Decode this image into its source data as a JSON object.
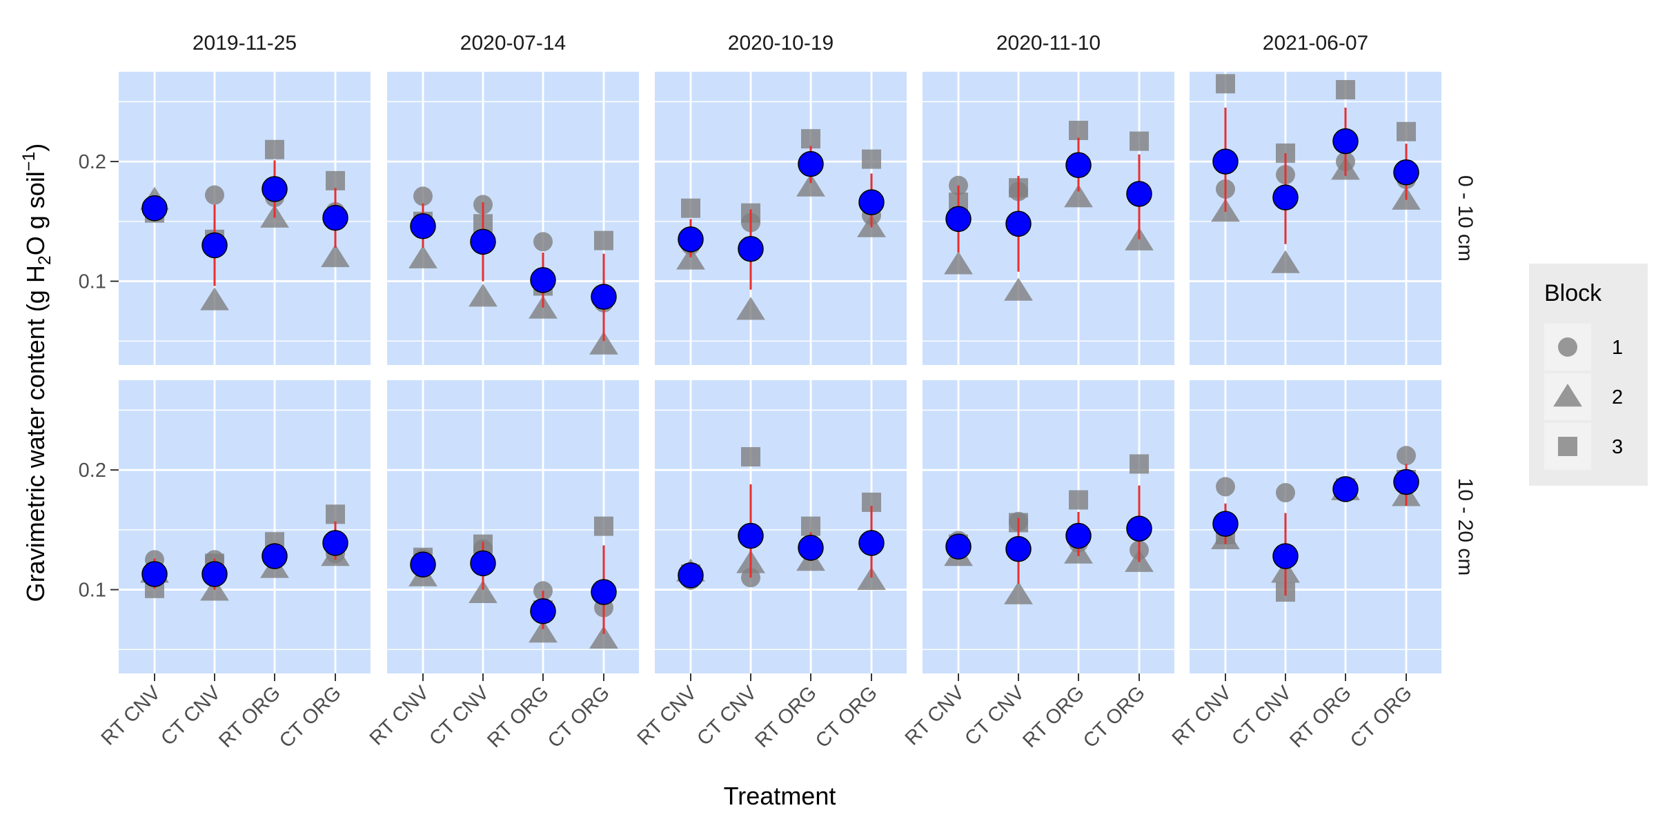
{
  "chart_data": {
    "type": "scatter",
    "title": "",
    "xlabel": "Treatment",
    "ylabel": "Gravimetric water content (g  H₂O g  soil⁻¹)",
    "ylabel_parts": {
      "pre": "Gravimetric water content (g  H",
      "sub": "2",
      "mid": "O g  soil",
      "sup": "−1",
      "post": ")"
    },
    "categories": [
      "RT CNV",
      "CT CNV",
      "RT ORG",
      "CT ORG"
    ],
    "dates": [
      "2019-11-25",
      "2020-07-14",
      "2020-10-19",
      "2020-11-10",
      "2021-06-07"
    ],
    "depths": [
      "0 - 10 cm",
      "10 - 20 cm"
    ],
    "ylim": [
      0.03,
      0.275
    ],
    "yticks": [
      0.1,
      0.2
    ],
    "grid": true,
    "legend": {
      "title": "Block",
      "placement": "right",
      "entries": [
        {
          "label": "1",
          "shape": "circle"
        },
        {
          "label": "2",
          "shape": "triangle"
        },
        {
          "label": "3",
          "shape": "square"
        }
      ]
    },
    "colors": {
      "panel_bg": "#cce0fd",
      "grid": "#ffffff",
      "block_points": "#7f7f7f",
      "mean_fill": "#0000ff",
      "mean_stroke": "#000000",
      "error_bar": "#e8302e",
      "strip_text": "#1a1a1a",
      "legend_bg": "#ebebeb"
    },
    "panels": [
      {
        "date": "2019-11-25",
        "depth": "0 - 10 cm",
        "series": [
          {
            "category": "RT CNV",
            "mean": 0.161,
            "err": [
              0.155,
              0.167
            ],
            "blocks": [
              0.158,
              0.168,
              0.157
            ]
          },
          {
            "category": "CT CNV",
            "mean": 0.13,
            "err": [
              0.096,
              0.164
            ],
            "blocks": [
              0.172,
              0.084,
              0.135
            ]
          },
          {
            "category": "RT ORG",
            "mean": 0.177,
            "err": [
              0.153,
              0.201
            ],
            "blocks": [
              0.17,
              0.153,
              0.21
            ]
          },
          {
            "category": "CT ORG",
            "mean": 0.153,
            "err": [
              0.128,
              0.178
            ],
            "blocks": [
              0.158,
              0.12,
              0.184
            ]
          }
        ]
      },
      {
        "date": "2020-07-14",
        "depth": "0 - 10 cm",
        "series": [
          {
            "category": "RT CNV",
            "mean": 0.146,
            "err": [
              0.128,
              0.165
            ],
            "blocks": [
              0.171,
              0.119,
              0.15
            ]
          },
          {
            "category": "CT CNV",
            "mean": 0.133,
            "err": [
              0.1,
              0.166
            ],
            "blocks": [
              0.164,
              0.087,
              0.148
            ]
          },
          {
            "category": "RT ORG",
            "mean": 0.101,
            "err": [
              0.078,
              0.124
            ],
            "blocks": [
              0.133,
              0.077,
              0.096
            ]
          },
          {
            "category": "CT ORG",
            "mean": 0.087,
            "err": [
              0.05,
              0.123
            ],
            "blocks": [
              0.082,
              0.047,
              0.134
            ]
          }
        ]
      },
      {
        "date": "2020-10-19",
        "depth": "0 - 10 cm",
        "series": [
          {
            "category": "RT CNV",
            "mean": 0.135,
            "err": [
              0.12,
              0.152
            ],
            "blocks": [
              0.13,
              0.118,
              0.161
            ]
          },
          {
            "category": "CT CNV",
            "mean": 0.127,
            "err": [
              0.093,
              0.16
            ],
            "blocks": [
              0.149,
              0.076,
              0.157
            ]
          },
          {
            "category": "RT ORG",
            "mean": 0.198,
            "err": [
              0.182,
              0.213
            ],
            "blocks": [
              0.196,
              0.179,
              0.219
            ]
          },
          {
            "category": "CT ORG",
            "mean": 0.166,
            "err": [
              0.145,
              0.19
            ],
            "blocks": [
              0.155,
              0.145,
              0.202
            ]
          }
        ]
      },
      {
        "date": "2020-11-10",
        "depth": "0 - 10 cm",
        "series": [
          {
            "category": "RT CNV",
            "mean": 0.152,
            "err": [
              0.124,
              0.18
            ],
            "blocks": [
              0.18,
              0.114,
              0.166
            ]
          },
          {
            "category": "CT CNV",
            "mean": 0.148,
            "err": [
              0.108,
              0.188
            ],
            "blocks": [
              0.175,
              0.092,
              0.178
            ]
          },
          {
            "category": "RT ORG",
            "mean": 0.197,
            "err": [
              0.175,
              0.22
            ],
            "blocks": [
              0.196,
              0.17,
              0.226
            ]
          },
          {
            "category": "CT ORG",
            "mean": 0.173,
            "err": [
              0.135,
              0.206
            ],
            "blocks": [
              0.172,
              0.134,
              0.217
            ]
          }
        ]
      },
      {
        "date": "2021-06-07",
        "depth": "0 - 10 cm",
        "series": [
          {
            "category": "RT CNV",
            "mean": 0.2,
            "err": [
              0.158,
              0.245
            ],
            "blocks": [
              0.177,
              0.158,
              0.265
            ]
          },
          {
            "category": "CT CNV",
            "mean": 0.17,
            "err": [
              0.131,
              0.207
            ],
            "blocks": [
              0.189,
              0.115,
              0.207
            ]
          },
          {
            "category": "RT ORG",
            "mean": 0.217,
            "err": [
              0.188,
              0.245
            ],
            "blocks": [
              0.2,
              0.193,
              0.26
            ]
          },
          {
            "category": "CT ORG",
            "mean": 0.191,
            "err": [
              0.168,
              0.215
            ],
            "blocks": [
              0.185,
              0.168,
              0.225
            ]
          }
        ]
      },
      {
        "date": "2019-11-25",
        "depth": "10 - 20 cm",
        "series": [
          {
            "category": "RT CNV",
            "mean": 0.113,
            "err": [
              0.101,
              0.126
            ],
            "blocks": [
              0.125,
              0.114,
              0.101
            ]
          },
          {
            "category": "CT CNV",
            "mean": 0.113,
            "err": [
              0.1,
              0.126
            ],
            "blocks": [
              0.125,
              0.099,
              0.122
            ]
          },
          {
            "category": "RT ORG",
            "mean": 0.128,
            "err": [
              0.118,
              0.139
            ],
            "blocks": [
              0.13,
              0.118,
              0.14
            ]
          },
          {
            "category": "CT ORG",
            "mean": 0.139,
            "err": [
              0.125,
              0.157
            ],
            "blocks": [
              0.13,
              0.128,
              0.163
            ]
          }
        ]
      },
      {
        "date": "2020-07-14",
        "depth": "10 - 20 cm",
        "series": [
          {
            "category": "RT CNV",
            "mean": 0.121,
            "err": [
              0.11,
              0.13
            ],
            "blocks": [
              0.126,
              0.111,
              0.127
            ]
          },
          {
            "category": "CT CNV",
            "mean": 0.122,
            "err": [
              0.1,
              0.14
            ],
            "blocks": [
              0.134,
              0.097,
              0.138
            ]
          },
          {
            "category": "RT ORG",
            "mean": 0.082,
            "err": [
              0.067,
              0.099
            ],
            "blocks": [
              0.099,
              0.064,
              0.083
            ]
          },
          {
            "category": "CT ORG",
            "mean": 0.098,
            "err": [
              0.063,
              0.137
            ],
            "blocks": [
              0.085,
              0.059,
              0.153
            ]
          }
        ]
      },
      {
        "date": "2020-10-19",
        "depth": "10 - 20 cm",
        "series": [
          {
            "category": "RT CNV",
            "mean": 0.112,
            "err": [
              0.106,
              0.117
            ],
            "blocks": [
              0.108,
              0.115,
              0.113
            ]
          },
          {
            "category": "CT CNV",
            "mean": 0.145,
            "err": [
              0.11,
              0.188
            ],
            "blocks": [
              0.11,
              0.122,
              0.211
            ]
          },
          {
            "category": "RT ORG",
            "mean": 0.135,
            "err": [
              0.124,
              0.148
            ],
            "blocks": [
              0.133,
              0.124,
              0.153
            ]
          },
          {
            "category": "CT ORG",
            "mean": 0.139,
            "err": [
              0.11,
              0.17
            ],
            "blocks": [
              0.137,
              0.108,
              0.173
            ]
          }
        ]
      },
      {
        "date": "2020-11-10",
        "depth": "10 - 20 cm",
        "series": [
          {
            "category": "RT CNV",
            "mean": 0.136,
            "err": [
              0.128,
              0.145
            ],
            "blocks": [
              0.141,
              0.128,
              0.138
            ]
          },
          {
            "category": "CT CNV",
            "mean": 0.134,
            "err": [
              0.105,
              0.16
            ],
            "blocks": [
              0.157,
              0.096,
              0.156
            ]
          },
          {
            "category": "RT ORG",
            "mean": 0.145,
            "err": [
              0.128,
              0.165
            ],
            "blocks": [
              0.139,
              0.13,
              0.175
            ]
          },
          {
            "category": "CT ORG",
            "mean": 0.151,
            "err": [
              0.123,
              0.187
            ],
            "blocks": [
              0.133,
              0.123,
              0.205
            ]
          }
        ]
      },
      {
        "date": "2021-06-07",
        "depth": "10 - 20 cm",
        "series": [
          {
            "category": "RT CNV",
            "mean": 0.155,
            "err": [
              0.138,
              0.172
            ],
            "blocks": [
              0.186,
              0.142,
              0.146
            ]
          },
          {
            "category": "CT CNV",
            "mean": 0.128,
            "err": [
              0.095,
              0.164
            ],
            "blocks": [
              0.181,
              0.114,
              0.098
            ]
          },
          {
            "category": "RT ORG",
            "mean": 0.184,
            "err": [
              0.181,
              0.187
            ],
            "blocks": [
              0.185,
              0.183,
              0.185
            ]
          },
          {
            "category": "CT ORG",
            "mean": 0.19,
            "err": [
              0.17,
              0.205
            ],
            "blocks": [
              0.212,
              0.178,
              0.192
            ]
          }
        ]
      }
    ]
  }
}
